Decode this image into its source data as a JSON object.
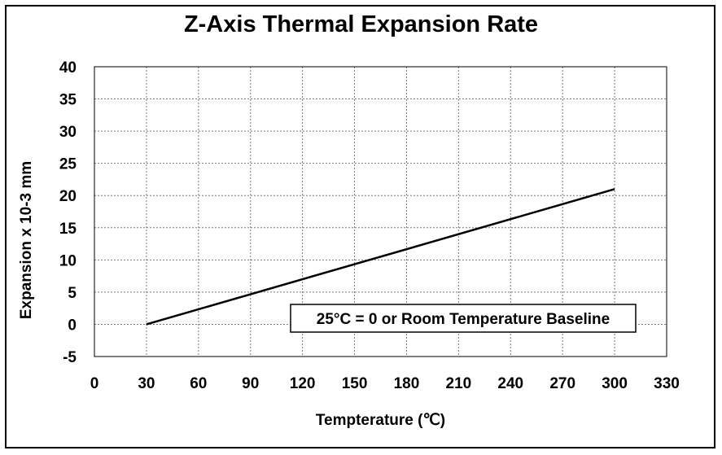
{
  "chart_data": {
    "type": "line",
    "title": "Z-Axis Thermal Expansion Rate",
    "xlabel": "Tempterature (℃)",
    "ylabel": "Expansion x 10-3 mm",
    "xlim": [
      0,
      330
    ],
    "ylim": [
      -5,
      40
    ],
    "x_ticks": [
      0,
      30,
      60,
      90,
      120,
      150,
      180,
      210,
      240,
      270,
      300,
      330
    ],
    "y_ticks": [
      -5,
      0,
      5,
      10,
      15,
      20,
      25,
      30,
      35,
      40
    ],
    "grid": true,
    "series": [
      {
        "x": [
          30,
          300
        ],
        "y": [
          0,
          21
        ],
        "color": "#000000"
      }
    ],
    "annotation": "25°C = 0 or Room Temperature Baseline"
  }
}
